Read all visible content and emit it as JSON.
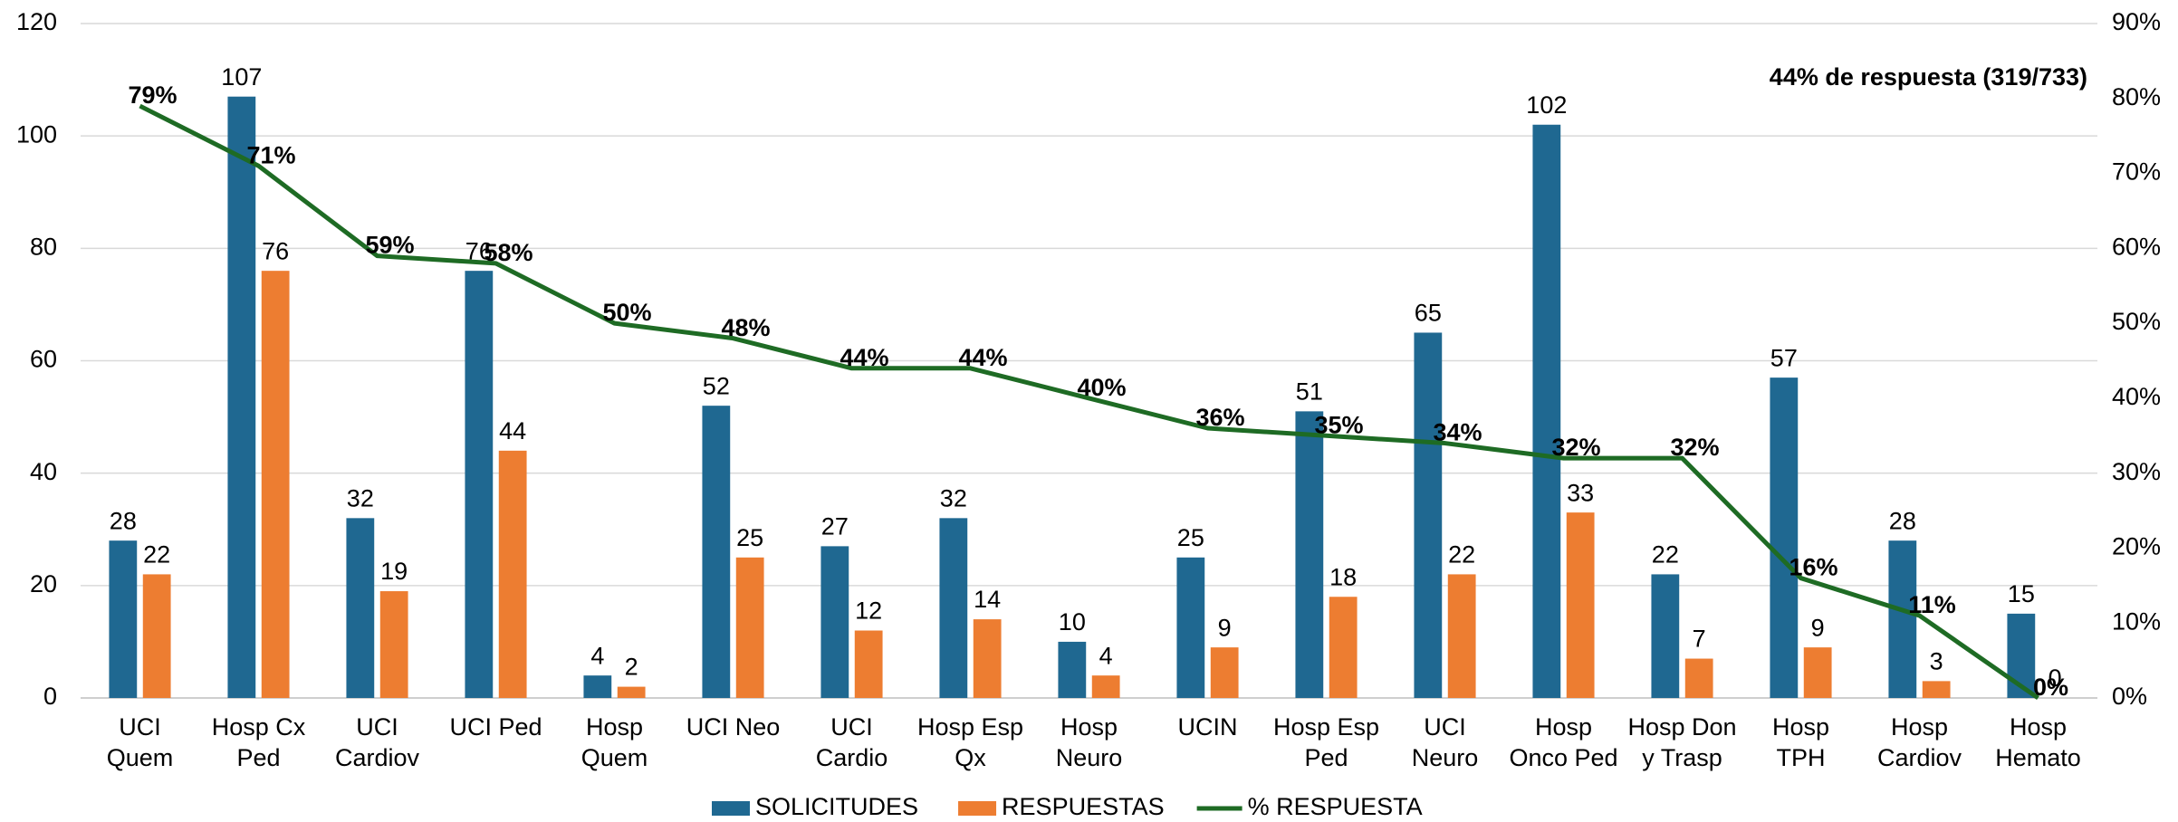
{
  "chart_data": {
    "type": "bar_line",
    "annotation": "44% de respuesta (319/733)",
    "categories": [
      [
        "UCI",
        "Quem"
      ],
      [
        "Hosp Cx",
        "Ped"
      ],
      [
        "UCI",
        "Cardiov"
      ],
      [
        "UCI Ped"
      ],
      [
        "Hosp",
        "Quem"
      ],
      [
        "UCI Neo"
      ],
      [
        "UCI",
        "Cardio"
      ],
      [
        "Hosp Esp",
        "Qx"
      ],
      [
        "Hosp",
        "Neuro"
      ],
      [
        "UCIN"
      ],
      [
        "Hosp Esp",
        "Ped"
      ],
      [
        "UCI",
        "Neuro"
      ],
      [
        "Hosp",
        "Onco Ped"
      ],
      [
        "Hosp Don",
        "y Trasp"
      ],
      [
        "Hosp",
        "TPH"
      ],
      [
        "Hosp",
        "Cardiov"
      ],
      [
        "Hosp",
        "Hemato"
      ]
    ],
    "series": [
      {
        "name": "SOLICITUDES",
        "color": "#1f6891",
        "type": "bar",
        "values": [
          28,
          107,
          32,
          76,
          4,
          52,
          27,
          32,
          10,
          25,
          51,
          65,
          102,
          22,
          57,
          28,
          15
        ]
      },
      {
        "name": "RESPUESTAS",
        "color": "#ed7d31",
        "type": "bar",
        "values": [
          22,
          76,
          19,
          44,
          2,
          25,
          12,
          14,
          4,
          9,
          18,
          22,
          33,
          7,
          9,
          3,
          0
        ]
      },
      {
        "name": "% RESPUESTA",
        "color": "#1e6b24",
        "type": "line",
        "axis": "y2",
        "values": [
          79,
          71,
          59,
          58,
          50,
          48,
          44,
          44,
          40,
          36,
          35,
          34,
          32,
          32,
          16,
          11,
          0
        ],
        "value_labels": [
          "79%",
          "71%",
          "59%",
          "58%",
          "50%",
          "48%",
          "44%",
          "44%",
          "40%",
          "36%",
          "35%",
          "34%",
          "32%",
          "32%",
          "16%",
          "11%",
          "0%"
        ]
      }
    ],
    "ylim": [
      0,
      120
    ],
    "yticks": [
      0,
      20,
      40,
      60,
      80,
      100,
      120
    ],
    "y2lim": [
      0,
      90
    ],
    "y2ticks": [
      {
        "value": 0,
        "label": "0%"
      },
      {
        "value": 10,
        "label": "10%"
      },
      {
        "value": 20,
        "label": "20%"
      },
      {
        "value": 30,
        "label": "30%"
      },
      {
        "value": 40,
        "label": "40%"
      },
      {
        "value": 50,
        "label": "50%"
      },
      {
        "value": 60,
        "label": "60%"
      },
      {
        "value": 70,
        "label": "70%"
      },
      {
        "value": 80,
        "label": "80%"
      },
      {
        "value": 90,
        "label": "90%"
      }
    ],
    "grid": true
  }
}
